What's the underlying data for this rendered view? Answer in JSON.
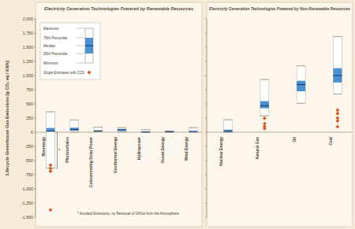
{
  "chart_data": [
    {
      "type": "box",
      "title": "Electricity Generation Technologies Powered by Renewable Resources",
      "y_label": "Lifecycle Greenhouse Gas Emissions [g CO₂ eq / kWh]",
      "categories": [
        "Bioenergy",
        "Photovoltaics",
        "Concentrating Solar Power",
        "Geothermal Energy",
        "Hydropower",
        "Ocean Energy",
        "Wind Energy"
      ],
      "min": [
        -633,
        5,
        7,
        6,
        0,
        2,
        2
      ],
      "q1": [
        10,
        29,
        14,
        20,
        3,
        6,
        8
      ],
      "median": [
        18,
        46,
        22,
        45,
        4,
        8,
        12
      ],
      "q3": [
        75,
        80,
        32,
        57,
        7,
        9,
        20
      ],
      "max": [
        360,
        217,
        89,
        79,
        43,
        23,
        81
      ],
      "color": "#4b91cf",
      "series": [
        {
          "name": "Single Estimates with CCS",
          "color": "#e0531f",
          "marker": "diamond",
          "values": [
            [
              -580,
              -640,
              -690,
              -1370
            ],
            [],
            [],
            [],
            [],
            [],
            []
          ]
        }
      ],
      "legend": "top-left",
      "legend_labels": [
        "Maximum",
        "75th Percentile",
        "Median",
        "25th Percentile",
        "Minimum"
      ],
      "star": "*",
      "note": "* Avoided Emissions, no Removal of GHGs from the Atmosphere",
      "ylim": [
        -1500,
        2000
      ],
      "yticks": [
        {
          "value": -1500,
          "label": "-1,500"
        },
        {
          "value": -1250,
          "label": "-1,250"
        },
        {
          "value": -1000,
          "label": "-1,000"
        },
        -750,
        -500,
        -250,
        0,
        250,
        500,
        750,
        {
          "value": 1000,
          "label": "1,000"
        },
        {
          "value": 1250,
          "label": "1,250"
        },
        {
          "value": 1500,
          "label": "1,500"
        },
        {
          "value": 1750,
          "label": "1,750"
        },
        {
          "value": 2000,
          "label": "2,000"
        }
      ],
      "grid": false
    },
    {
      "type": "box",
      "title": "Electricity Generation Technologies Powered by Non-Renewable Resources",
      "categories": [
        "Nuclear Energy",
        "Natural Gas",
        "Oil",
        "Coal"
      ],
      "min": [
        1,
        290,
        510,
        675
      ],
      "q1": [
        8,
        422,
        722,
        877
      ],
      "median": [
        16,
        469,
        840,
        1001
      ],
      "q3": [
        45,
        548,
        907,
        1130
      ],
      "max": [
        220,
        930,
        1170,
        1689
      ],
      "color": "#4b91cf",
      "series": [
        {
          "name": "Single Estimates with CCS",
          "color": "#e0531f",
          "marker": "diamond",
          "values": [
            [],
            [
              65,
              100,
              150,
              245
            ],
            [],
            [
              98,
              200,
              250,
              330,
              390
            ]
          ]
        }
      ],
      "ylim": [
        -1500,
        2000
      ],
      "yticks": [
        {
          "value": -1500,
          "label": "-1,500"
        },
        {
          "value": -1250,
          "label": "-1,250"
        },
        {
          "value": -1000,
          "label": "-1,000"
        },
        -750,
        -500,
        -250,
        0,
        250,
        500,
        750,
        {
          "value": 1000,
          "label": "1,000"
        },
        {
          "value": 1250,
          "label": "1,250"
        },
        {
          "value": 1500,
          "label": "1,500"
        },
        {
          "value": 1750,
          "label": "1,750"
        },
        {
          "value": 2000,
          "label": "2,000"
        }
      ],
      "tick_labels": "x",
      "grid": false
    }
  ]
}
